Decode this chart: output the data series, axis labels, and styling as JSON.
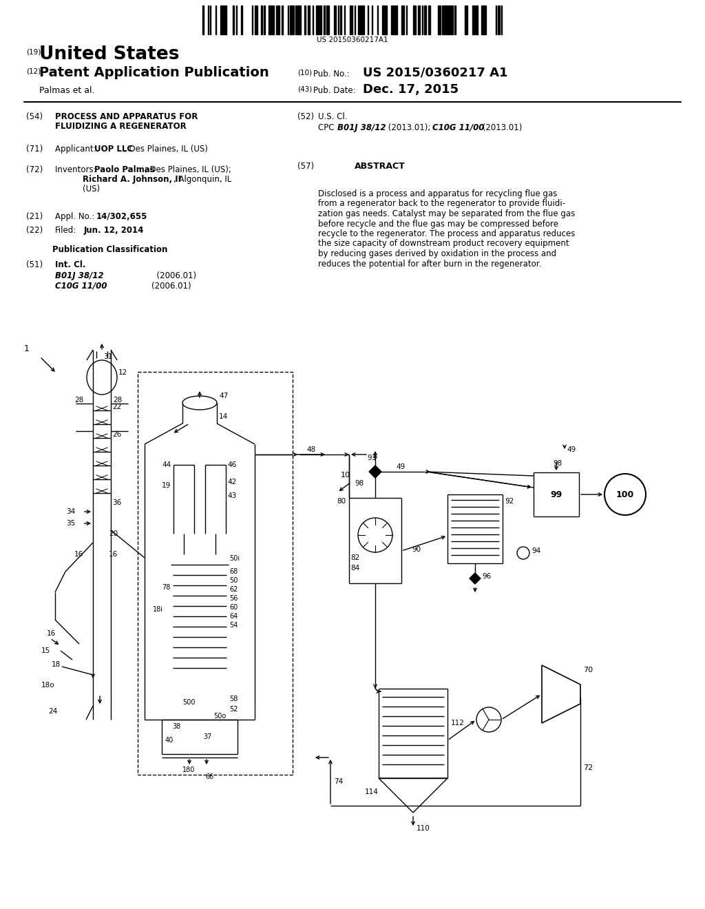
{
  "barcode_text": "US 20150360217A1",
  "country": "United States",
  "doc_type": "Patent Application Publication",
  "field19_label": "(19)",
  "field12_label": "(12)",
  "applicant_name": "Palmas et al.",
  "field10_label": "(10) Pub. No.:",
  "pub_no": "US 2015/0360217 A1",
  "field43_label": "(43) Pub. Date:",
  "pub_date": "Dec. 17, 2015",
  "field54_num": "(54)",
  "field54_title1": "PROCESS AND APPARATUS FOR",
  "field54_title2": "FLUIDIZING A REGENERATOR",
  "field52_num": "(52)",
  "field52_label": "U.S. Cl.",
  "cpc_label": "CPC",
  "cpc_class1_italic": "B01J 38/12",
  "cpc_class1_rest": " (2013.01); ",
  "cpc_class2_italic": "C10G 11/00",
  "cpc_class2_rest": " (2013.01)",
  "field71_num": "(71)",
  "field71_text_pre": "Applicant:  ",
  "field71_text_bold": "UOP LLC",
  "field71_text_post": ", Des Plaines, IL (US)",
  "field72_num": "(72)",
  "field72_inventors_line1_pre": "Inventors:  ",
  "field72_inventors_line1_bold": "Paolo Palmas",
  "field72_inventors_line1_post": ", Des Plaines, IL (US);",
  "field72_inventors_line2_bold": "Richard A. Johnson, II",
  "field72_inventors_line2_post": ", Algonquin, IL",
  "field72_inventors_line3": "(US)",
  "field57_num": "(57)",
  "field57_title": "ABSTRACT",
  "abstract_text1": "Disclosed is a process and apparatus for recycling flue gas",
  "abstract_text2": "from a regenerator back to the regenerator to provide fluidi-",
  "abstract_text3": "zation gas needs. Catalyst may be separated from the flue gas",
  "abstract_text4": "before recycle and the flue gas may be compressed before",
  "abstract_text5": "recycle to the regenerator. The process and apparatus reduces",
  "abstract_text6": "the size capacity of downstream product recovery equipment",
  "abstract_text7": "by reducing gases derived by oxidation in the process and",
  "abstract_text8": "reduces the potential for after burn in the regenerator.",
  "field21_num": "(21)",
  "field21_label": "Appl. No.:",
  "field21_value": "14/302,655",
  "field22_num": "(22)",
  "field22_label": "Filed:",
  "field22_value": "Jun. 12, 2014",
  "pub_class_title": "Publication Classification",
  "field51_num": "(51)",
  "field51_intcl": "Int. Cl.",
  "field51_class1_italic": "B01J 38/12",
  "field51_class1_year": "(2006.01)",
  "field51_class2_italic": "C10G 11/00",
  "field51_class2_year": "(2006.01)",
  "bg_color": "#ffffff",
  "text_color": "#000000"
}
